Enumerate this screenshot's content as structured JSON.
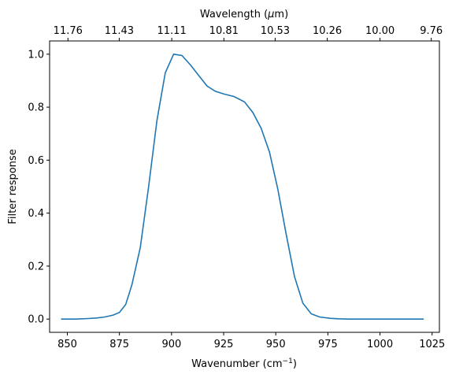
{
  "chart_data": {
    "type": "line",
    "title": "",
    "xlabel_main": "Wavenumber (cm",
    "xlabel_sup": "−1",
    "xlabel_close": ")",
    "xlabel_top_main": "Wavelength (",
    "xlabel_top_mu": "μ",
    "xlabel_top_close": "m)",
    "ylabel": "Filter response",
    "xlim": [
      841.5,
      1028.5
    ],
    "ylim": [
      -0.05,
      1.05
    ],
    "x_ticks": [
      850,
      875,
      900,
      925,
      950,
      975,
      1000,
      1025
    ],
    "x_tick_labels": [
      "850",
      "875",
      "900",
      "925",
      "950",
      "975",
      "1000",
      "1025"
    ],
    "y_ticks": [
      0.0,
      0.2,
      0.4,
      0.6,
      0.8,
      1.0
    ],
    "y_tick_labels": [
      "0.0",
      "0.2",
      "0.4",
      "0.6",
      "0.8",
      "1.0"
    ],
    "top_ticks": [
      850.3,
      874.9,
      900.1,
      925.1,
      949.7,
      974.7,
      1000.0,
      1024.6
    ],
    "top_tick_labels": [
      "11.76",
      "11.43",
      "11.11",
      "10.81",
      "10.53",
      "10.26",
      "10.00",
      "9.76"
    ],
    "grid": false,
    "series": [
      {
        "color": "#1f77b4",
        "x": [
          847,
          854,
          860,
          864,
          868,
          872,
          875,
          878,
          881,
          885,
          889,
          893,
          897,
          901,
          905,
          909,
          913,
          917,
          921,
          925,
          930,
          935,
          939,
          943,
          947,
          951,
          955,
          959,
          963,
          967,
          971,
          976,
          980,
          985,
          990,
          1000,
          1010,
          1021
        ],
        "y": [
          0.0,
          0.0,
          0.002,
          0.004,
          0.008,
          0.015,
          0.025,
          0.055,
          0.13,
          0.27,
          0.5,
          0.75,
          0.93,
          1.0,
          0.995,
          0.96,
          0.92,
          0.88,
          0.86,
          0.85,
          0.84,
          0.82,
          0.78,
          0.72,
          0.63,
          0.49,
          0.32,
          0.16,
          0.06,
          0.02,
          0.008,
          0.003,
          0.001,
          0.0,
          0.0,
          0.0,
          0.0,
          0.0
        ]
      }
    ]
  }
}
